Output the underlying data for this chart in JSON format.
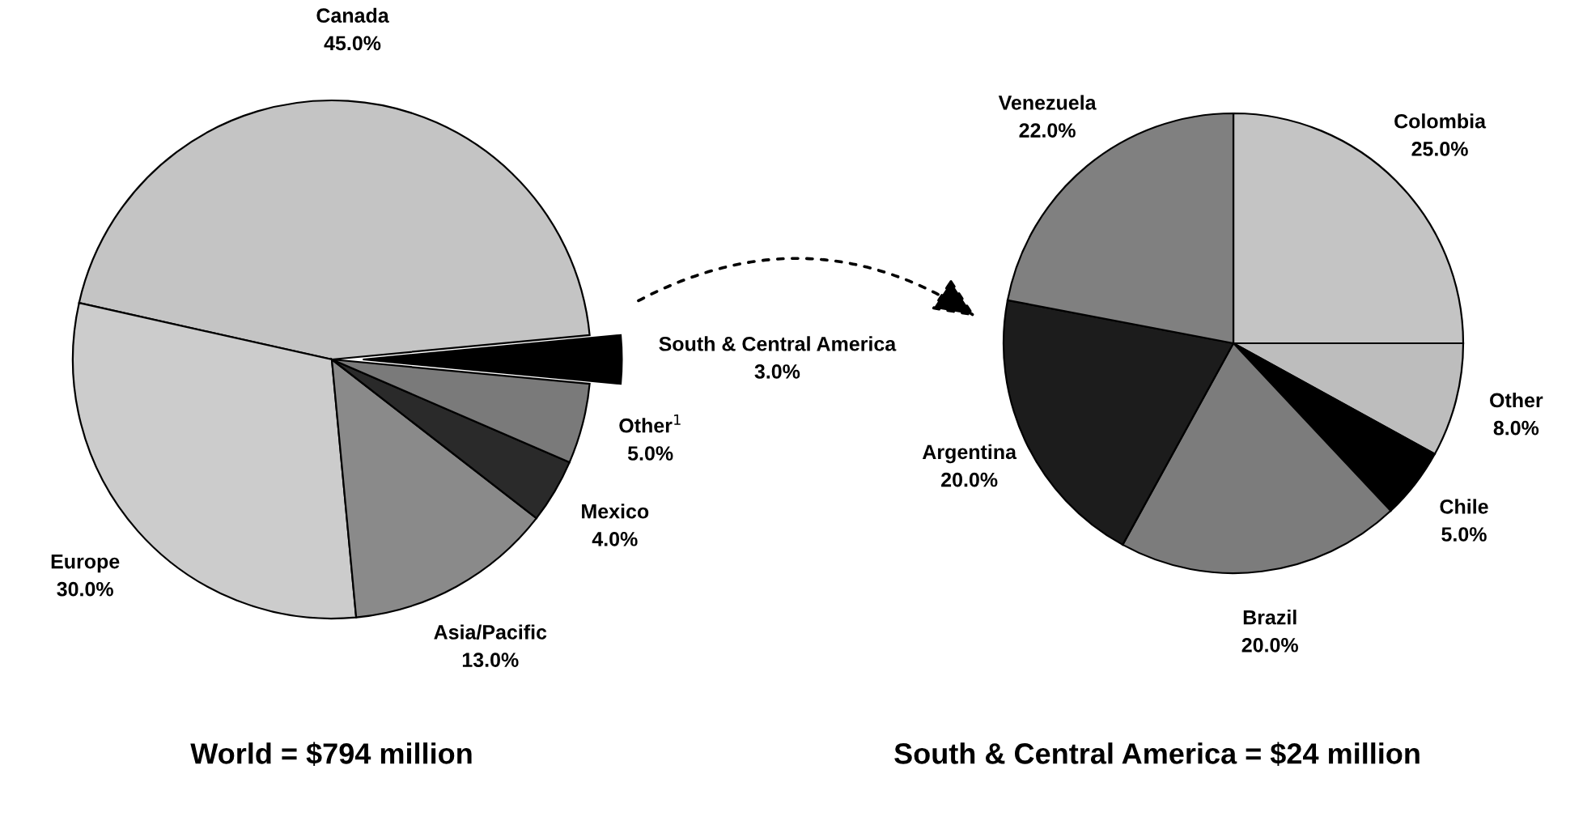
{
  "chart_data": [
    {
      "type": "pie",
      "title": "World = $794 million",
      "categories": [
        "South & Central America",
        "Canada",
        "Europe",
        "Asia/Pacific",
        "Mexico",
        "Other$^{1}$"
      ],
      "values": [
        3,
        45,
        30,
        13,
        4,
        5
      ],
      "value_labels": [
        "3.0%",
        "45.0%",
        "30.0%",
        "13.0%",
        "4.0%",
        "5.0%"
      ],
      "colors": [
        "#000000",
        "#c4c4c4",
        "#cccccc",
        "#8a8a8a",
        "#2a2a2a",
        "#7a7a7a"
      ]
    },
    {
      "type": "pie",
      "title": "South & Central America = $24 million",
      "categories": [
        "Colombia",
        "Other",
        "Chile",
        "Brazil",
        "Argentina",
        "Venezuela"
      ],
      "values": [
        25,
        8,
        5,
        20,
        20,
        22
      ],
      "value_labels": [
        "25.0%",
        "8.0%",
        "5.0%",
        "20.0%",
        "20.0%",
        "22.0%"
      ],
      "colors": [
        "#c4c4c4",
        "#bdbdbd",
        "#000000",
        "#7c7c7c",
        "#1c1c1c",
        "#808080"
      ]
    }
  ]
}
